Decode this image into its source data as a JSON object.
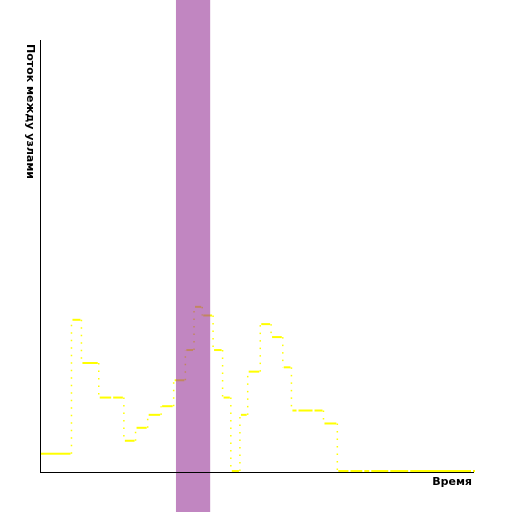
{
  "chart_data": {
    "type": "line",
    "style": "step",
    "title": "",
    "xlabel": "Время",
    "ylabel": "Поток между узлами",
    "xlim": [
      0,
      100
    ],
    "ylim": [
      0,
      100
    ],
    "grid": false,
    "series": [
      {
        "color": "#ffff00",
        "line_style": "step-post",
        "x": [
          0,
          7.5,
          9.8,
          13.8,
          16.9,
          19.6,
          22.3,
          25.1,
          28.2,
          31.1,
          33.8,
          35.8,
          37.7,
          40.2,
          42.4,
          44.3,
          46.4,
          48.2,
          51.1,
          53.6,
          56.3,
          58.3,
          59.7,
          63.4,
          65.7,
          68.9,
          71.7,
          74.9,
          76.5,
          80.9,
          85.5,
          100
        ],
        "y": [
          4,
          35,
          25,
          17,
          17,
          7,
          10,
          13,
          15,
          21,
          28,
          38,
          36,
          28,
          17,
          0,
          13,
          23,
          34,
          31,
          24,
          14,
          14,
          14,
          11,
          0,
          0,
          0,
          0,
          0,
          0,
          0
        ]
      }
    ],
    "highlight_band": {
      "x_start": 31.4,
      "x_end": 39.3,
      "color": "#9b3b9b"
    }
  }
}
